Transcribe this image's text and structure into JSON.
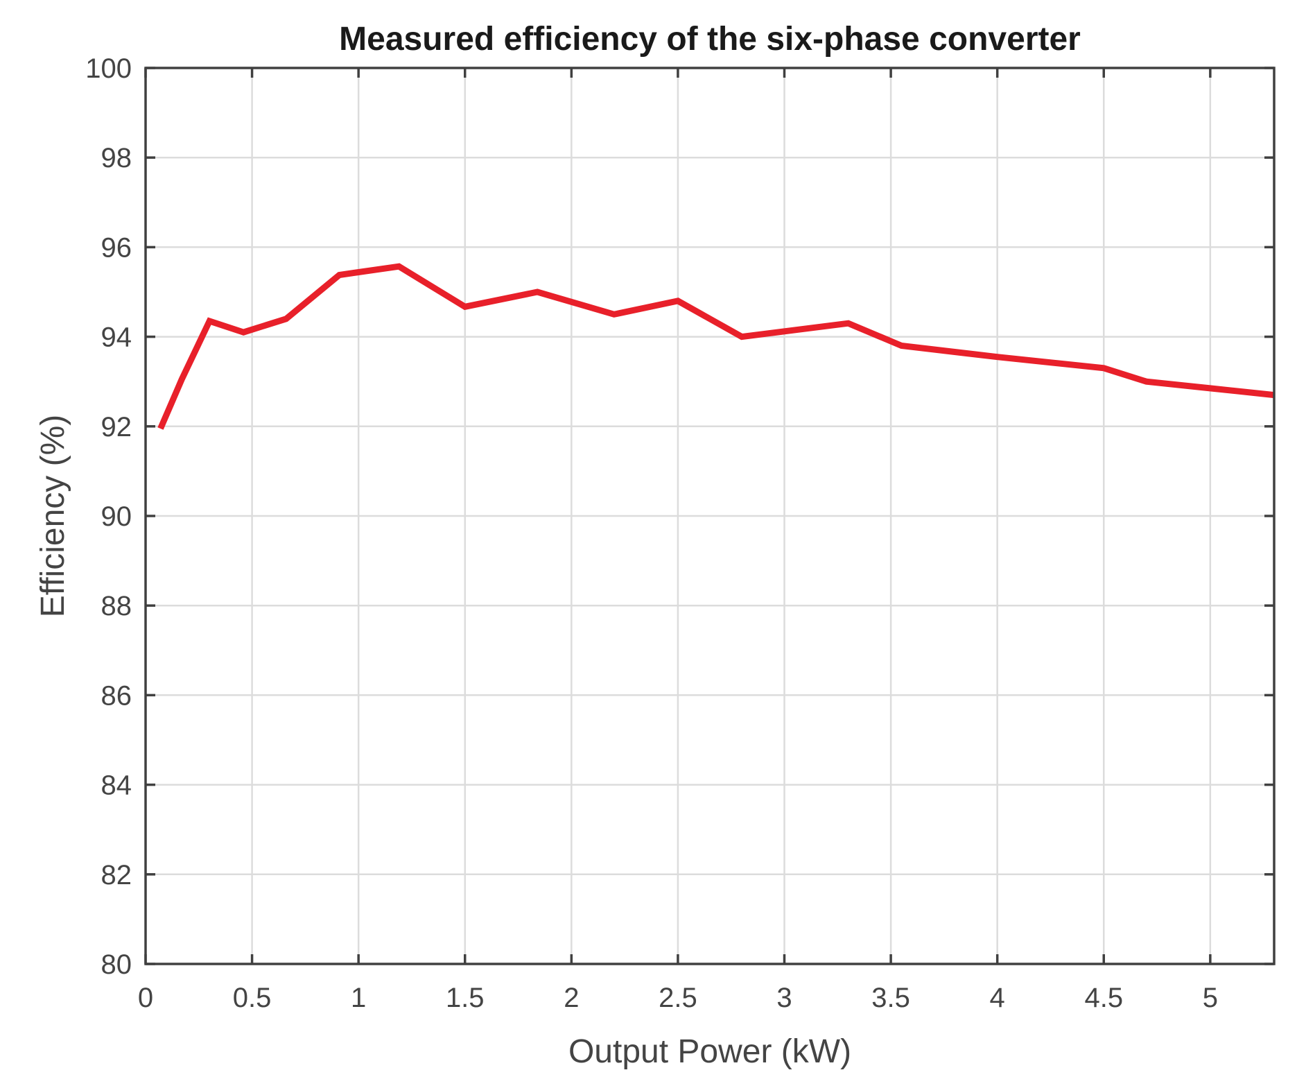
{
  "chart_data": {
    "type": "line",
    "title": "Measured efficiency of the six-phase converter",
    "xlabel": "Output Power (kW)",
    "ylabel": "Efficiency (%)",
    "xlim": [
      0,
      5.3
    ],
    "ylim": [
      80,
      100
    ],
    "grid": true,
    "xticks": [
      0,
      0.5,
      1,
      1.5,
      2,
      2.5,
      3,
      3.5,
      4,
      4.5,
      5
    ],
    "xtick_labels": [
      "0",
      "0.5",
      "1",
      "1.5",
      "2",
      "2.5",
      "3",
      "3.5",
      "4",
      "4.5",
      "5"
    ],
    "yticks": [
      80,
      82,
      84,
      86,
      88,
      90,
      92,
      94,
      96,
      98,
      100
    ],
    "ytick_labels": [
      "80",
      "82",
      "84",
      "86",
      "88",
      "90",
      "92",
      "94",
      "96",
      "98",
      "100"
    ],
    "series": [
      {
        "name": "Efficiency",
        "color": "#e8202a",
        "x": [
          0.07,
          0.17,
          0.3,
          0.46,
          0.66,
          0.91,
          1.19,
          1.5,
          1.84,
          2.2,
          2.5,
          2.8,
          3.3,
          3.55,
          4.0,
          4.5,
          4.7,
          5.0,
          5.3
        ],
        "y": [
          91.95,
          93.05,
          94.35,
          94.1,
          94.4,
          95.38,
          95.57,
          94.67,
          95.0,
          94.5,
          94.8,
          94.0,
          94.3,
          93.8,
          93.55,
          93.3,
          93.0,
          92.85,
          92.7
        ]
      }
    ]
  }
}
